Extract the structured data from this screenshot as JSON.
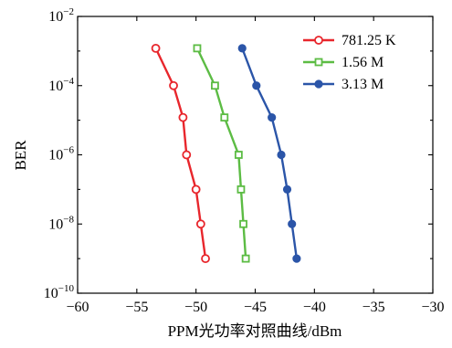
{
  "chart_data": {
    "type": "line",
    "xlabel": "PPM光功率对照曲线/dBm",
    "ylabel": "BER",
    "xlim": [
      -60,
      -30
    ],
    "ylim": [
      1e-10,
      0.01
    ],
    "yscale": "log",
    "grid": false,
    "legend_position": "top-right",
    "x_ticks": [
      {
        "value": -60,
        "label": "−60"
      },
      {
        "value": -55,
        "label": "−55"
      },
      {
        "value": -50,
        "label": "−50"
      },
      {
        "value": -45,
        "label": "−45"
      },
      {
        "value": -40,
        "label": "−40"
      },
      {
        "value": -35,
        "label": "−35"
      },
      {
        "value": -30,
        "label": "−30"
      }
    ],
    "y_ticks": [
      {
        "value": 0.01,
        "base": "10",
        "exp": "−2"
      },
      {
        "value": 0.0001,
        "base": "10",
        "exp": "−4"
      },
      {
        "value": 1e-06,
        "base": "10",
        "exp": "−6"
      },
      {
        "value": 1e-08,
        "base": "10",
        "exp": "−8"
      },
      {
        "value": 1e-10,
        "base": "10",
        "exp": "−10"
      }
    ],
    "series": [
      {
        "name": "781.25 K",
        "color": "#e8262c",
        "marker": "circle",
        "x": [
          -53.4,
          -51.9,
          -51.1,
          -50.8,
          -50.0,
          -49.6,
          -49.2
        ],
        "y": [
          0.0012,
          0.0001,
          1.2e-05,
          1e-06,
          1e-07,
          1e-08,
          1e-09
        ]
      },
      {
        "name": "1.56 M",
        "color": "#5cbc44",
        "marker": "square",
        "x": [
          -49.9,
          -48.4,
          -47.6,
          -46.4,
          -46.2,
          -46.0,
          -45.8
        ],
        "y": [
          0.0012,
          0.0001,
          1.2e-05,
          1e-06,
          1e-07,
          1e-08,
          1e-09
        ]
      },
      {
        "name": "3.13 M",
        "color": "#2b55a8",
        "marker": "circle-filled",
        "x": [
          -46.1,
          -44.9,
          -43.6,
          -42.8,
          -42.3,
          -41.9,
          -41.5
        ],
        "y": [
          0.0012,
          0.0001,
          1.2e-05,
          1e-06,
          1e-07,
          1e-08,
          1e-09
        ]
      }
    ]
  }
}
